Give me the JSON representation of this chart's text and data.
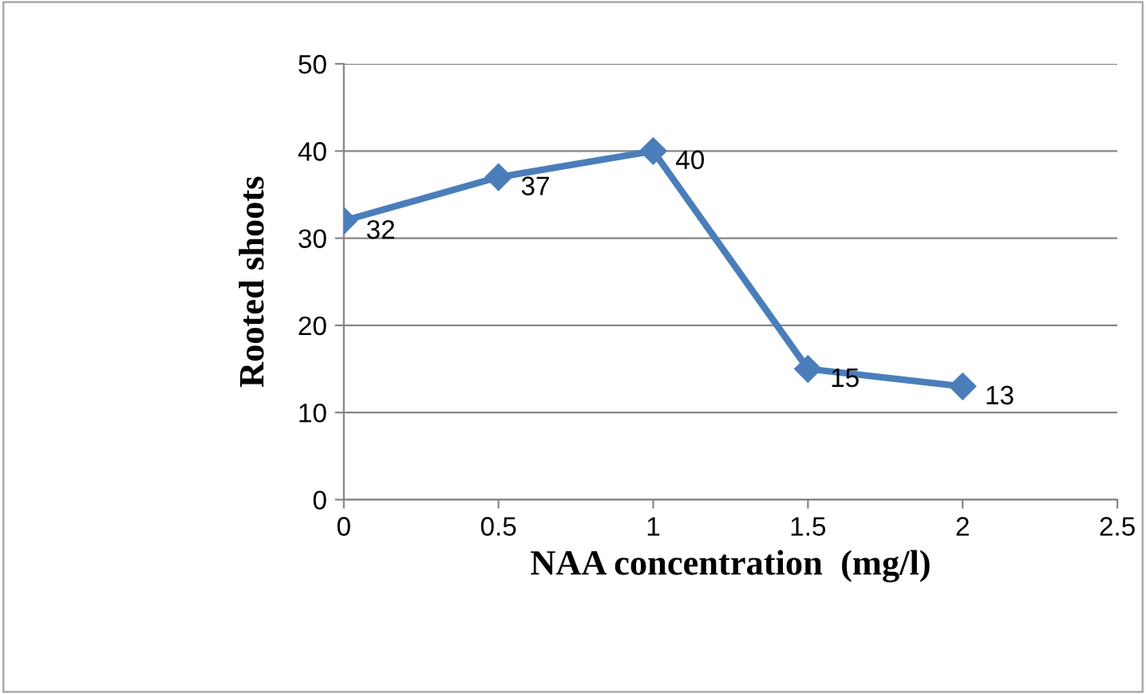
{
  "chart_data": {
    "type": "line",
    "xlabel": "NAA concentration  (mg/l)",
    "ylabel": "Rooted shoots",
    "x": [
      0,
      0.5,
      1,
      1.5,
      2
    ],
    "series": [
      {
        "color": "#4a7ebb",
        "values": [
          32,
          37,
          40,
          15,
          13
        ]
      }
    ],
    "xlim": [
      0,
      2.5
    ],
    "xticks": [
      0,
      0.5,
      1,
      1.5,
      2,
      2.5
    ],
    "ylim": [
      0,
      50
    ],
    "yticks": [
      0,
      10,
      20,
      30,
      40,
      50
    ],
    "grid": "y",
    "marker": "diamond",
    "line_style": "solid",
    "data_labels": true
  }
}
